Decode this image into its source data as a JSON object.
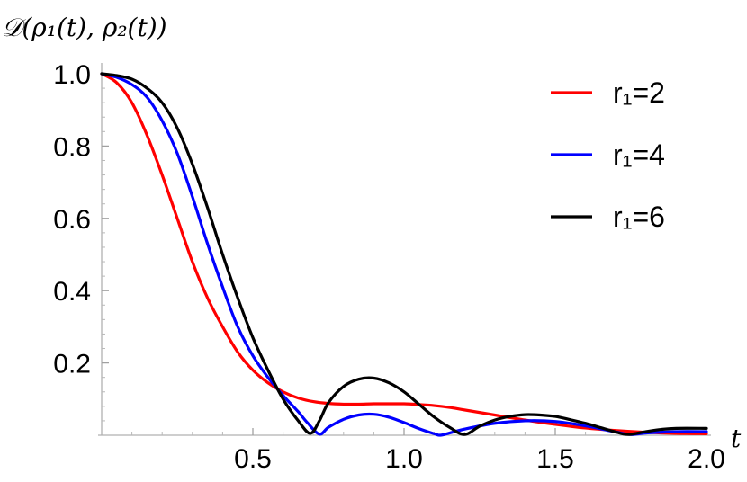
{
  "chart_data": {
    "type": "line",
    "ylabel": "𝒟(ρ₁(t), ρ₂(t))",
    "xlabel": "t",
    "xlim": [
      0,
      2.0
    ],
    "ylim": [
      0,
      1.0
    ],
    "x_ticks": [
      {
        "value": 0.5,
        "label": "0.5"
      },
      {
        "value": 1.0,
        "label": "1.0"
      },
      {
        "value": 1.5,
        "label": "1.5"
      },
      {
        "value": 2.0,
        "label": "2.0"
      }
    ],
    "y_ticks": [
      {
        "value": 0.2,
        "label": "0.2"
      },
      {
        "value": 0.4,
        "label": "0.4"
      },
      {
        "value": 0.6,
        "label": "0.6"
      },
      {
        "value": 0.8,
        "label": "0.8"
      },
      {
        "value": 1.0,
        "label": "1.0"
      }
    ],
    "grid": false,
    "legend_position": "top-right",
    "series": [
      {
        "name": "r₁=2",
        "color": "#ff0000",
        "x": [
          0,
          0.05,
          0.1,
          0.15,
          0.2,
          0.25,
          0.3,
          0.35,
          0.4,
          0.45,
          0.5,
          0.55,
          0.6,
          0.65,
          0.7,
          0.75,
          0.8,
          0.85,
          0.9,
          0.95,
          1.0,
          1.05,
          1.1,
          1.15,
          1.2,
          1.3,
          1.4,
          1.5,
          1.6,
          1.7,
          1.8,
          1.9,
          2.0
        ],
        "y": [
          1.0,
          0.975,
          0.92,
          0.83,
          0.72,
          0.6,
          0.48,
          0.38,
          0.3,
          0.23,
          0.18,
          0.145,
          0.12,
          0.103,
          0.093,
          0.088,
          0.086,
          0.086,
          0.087,
          0.087,
          0.087,
          0.085,
          0.082,
          0.077,
          0.07,
          0.056,
          0.042,
          0.03,
          0.02,
          0.013,
          0.008,
          0.005,
          0.004
        ]
      },
      {
        "name": "r₁=4",
        "color": "#0000ff",
        "x": [
          0,
          0.05,
          0.1,
          0.15,
          0.2,
          0.25,
          0.3,
          0.35,
          0.4,
          0.45,
          0.5,
          0.55,
          0.6,
          0.65,
          0.68,
          0.72,
          0.75,
          0.8,
          0.85,
          0.9,
          0.95,
          1.0,
          1.05,
          1.1,
          1.12,
          1.15,
          1.2,
          1.3,
          1.4,
          1.5,
          1.6,
          1.7,
          1.75,
          1.8,
          1.9,
          2.0
        ],
        "y": [
          1.0,
          0.99,
          0.97,
          0.935,
          0.87,
          0.78,
          0.66,
          0.53,
          0.41,
          0.3,
          0.22,
          0.16,
          0.11,
          0.065,
          0.035,
          0.003,
          0.022,
          0.044,
          0.056,
          0.058,
          0.05,
          0.035,
          0.018,
          0.004,
          0.0,
          0.006,
          0.017,
          0.033,
          0.04,
          0.038,
          0.026,
          0.009,
          0.002,
          0.006,
          0.01,
          0.01
        ]
      },
      {
        "name": "r₁=6",
        "color": "#000000",
        "x": [
          0,
          0.05,
          0.1,
          0.15,
          0.2,
          0.25,
          0.3,
          0.35,
          0.4,
          0.45,
          0.5,
          0.55,
          0.6,
          0.65,
          0.69,
          0.72,
          0.75,
          0.8,
          0.85,
          0.9,
          0.95,
          1.0,
          1.05,
          1.1,
          1.15,
          1.2,
          1.25,
          1.3,
          1.35,
          1.4,
          1.45,
          1.5,
          1.55,
          1.6,
          1.65,
          1.7,
          1.74,
          1.8,
          1.85,
          1.9,
          2.0
        ],
        "y": [
          1.0,
          0.995,
          0.985,
          0.96,
          0.92,
          0.85,
          0.75,
          0.63,
          0.5,
          0.38,
          0.27,
          0.18,
          0.1,
          0.04,
          0.005,
          0.04,
          0.09,
          0.135,
          0.155,
          0.158,
          0.145,
          0.12,
          0.085,
          0.05,
          0.022,
          0.002,
          0.025,
          0.042,
          0.052,
          0.057,
          0.056,
          0.052,
          0.043,
          0.033,
          0.021,
          0.009,
          0.002,
          0.01,
          0.016,
          0.019,
          0.019
        ]
      }
    ]
  }
}
